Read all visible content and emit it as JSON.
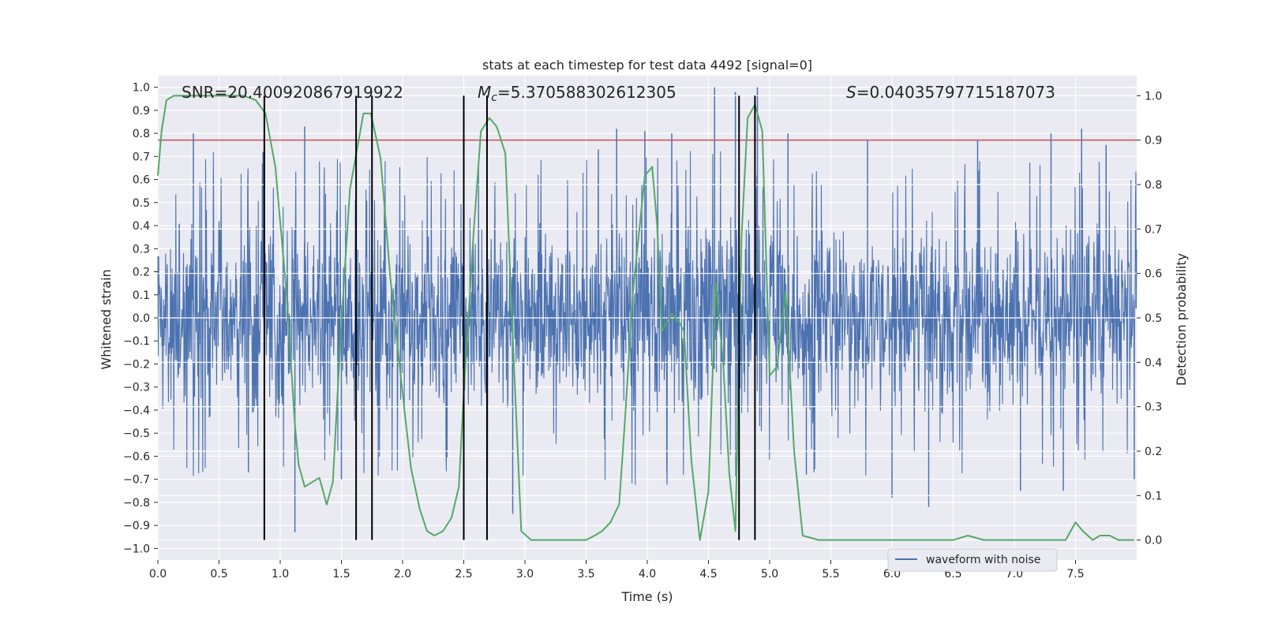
{
  "chart_data": {
    "type": "line",
    "title": "stats at each timestep for test data 4492 [signal=0]",
    "xlabel": "Time (s)",
    "ylabel_left": "Whitened strain",
    "ylabel_right": "Detection probability",
    "xlim": [
      0.0,
      8.0
    ],
    "ylim_left": [
      -1.05,
      1.05
    ],
    "ylim_right": [
      -0.045,
      1.045
    ],
    "x_ticks": [
      0.0,
      0.5,
      1.0,
      1.5,
      2.0,
      2.5,
      3.0,
      3.5,
      4.0,
      4.5,
      5.0,
      5.5,
      6.0,
      6.5,
      7.0,
      7.5
    ],
    "x_tick_labels": [
      "0.0",
      "0.5",
      "1.0",
      "1.5",
      "2.0",
      "2.5",
      "3.0",
      "3.5",
      "4.0",
      "4.5",
      "5.0",
      "5.5",
      "6.0",
      "6.5",
      "7.0",
      "7.5"
    ],
    "y_left_ticks": [
      -1.0,
      -0.9,
      -0.8,
      -0.7,
      -0.6,
      -0.5,
      -0.4,
      -0.3,
      -0.2,
      -0.1,
      0.0,
      0.1,
      0.2,
      0.3,
      0.4,
      0.5,
      0.6,
      0.7,
      0.8,
      0.9,
      1.0
    ],
    "y_left_tick_labels": [
      "−1.0",
      "−0.9",
      "−0.8",
      "−0.7",
      "−0.6",
      "−0.5",
      "−0.4",
      "−0.3",
      "−0.2",
      "−0.1",
      "0.0",
      "0.1",
      "0.2",
      "0.3",
      "0.4",
      "0.5",
      "0.6",
      "0.7",
      "0.8",
      "0.9",
      "1.0"
    ],
    "y_right_ticks": [
      0.0,
      0.1,
      0.2,
      0.3,
      0.4,
      0.5,
      0.6,
      0.7,
      0.8,
      0.9,
      1.0
    ],
    "y_right_tick_labels": [
      "0.0",
      "0.1",
      "0.2",
      "0.3",
      "0.4",
      "0.5",
      "0.6",
      "0.7",
      "0.8",
      "0.9",
      "1.0"
    ],
    "grid": true,
    "legend": {
      "placement": "lower-right",
      "entries": [
        "waveform with noise"
      ]
    },
    "annotations": {
      "snr": {
        "prefix": "SNR=",
        "value": "20.400920867919922"
      },
      "mc": {
        "prefix": "M",
        "subscript": "c",
        "equals": "=",
        "value": "5.370588302612305"
      },
      "s": {
        "prefix": "S",
        "equals": "=",
        "value": "0.04035797715187073"
      }
    },
    "threshold": {
      "axis": "right",
      "value": 0.9,
      "color": "#c44e52"
    },
    "vertical_lines_x": [
      0.87,
      1.62,
      1.75,
      2.5,
      2.69,
      4.75,
      4.88
    ],
    "vertical_lines_range_right": [
      0.0,
      1.0
    ],
    "waveform": {
      "name": "waveform with noise",
      "color": "#4c72b0",
      "envelope_points": [
        [
          0.0,
          0.55
        ],
        [
          0.5,
          0.6
        ],
        [
          1.0,
          0.6
        ],
        [
          1.5,
          0.55
        ],
        [
          2.0,
          0.55
        ],
        [
          2.5,
          0.58
        ],
        [
          3.0,
          0.55
        ],
        [
          3.5,
          0.55
        ],
        [
          4.0,
          0.6
        ],
        [
          4.5,
          0.62
        ],
        [
          5.0,
          0.55
        ],
        [
          5.5,
          0.55
        ],
        [
          6.0,
          0.55
        ],
        [
          6.5,
          0.55
        ],
        [
          7.0,
          0.55
        ],
        [
          7.5,
          0.55
        ],
        [
          8.0,
          0.55
        ]
      ],
      "peaks": [
        [
          0.29,
          0.8
        ],
        [
          0.74,
          -0.67
        ],
        [
          0.86,
          0.72
        ],
        [
          1.12,
          -0.93
        ],
        [
          1.2,
          0.83
        ],
        [
          1.5,
          -0.7
        ],
        [
          2.5,
          -0.8
        ],
        [
          2.9,
          -0.85
        ],
        [
          3.6,
          0.73
        ],
        [
          3.75,
          0.82
        ],
        [
          3.98,
          0.81
        ],
        [
          4.2,
          0.8
        ],
        [
          4.55,
          1.0
        ],
        [
          4.72,
          0.98
        ],
        [
          4.9,
          1.0
        ],
        [
          5.15,
          0.8
        ],
        [
          5.3,
          -0.68
        ],
        [
          5.8,
          0.77
        ],
        [
          6.0,
          -0.78
        ],
        [
          6.3,
          -0.82
        ],
        [
          6.7,
          0.77
        ],
        [
          7.05,
          -0.75
        ],
        [
          7.3,
          0.8
        ],
        [
          7.4,
          -0.75
        ],
        [
          7.55,
          0.82
        ],
        [
          7.75,
          0.75
        ],
        [
          7.98,
          -0.7
        ]
      ]
    },
    "detection_probability": {
      "color": "#55a868",
      "x": [
        0.0,
        0.03,
        0.07,
        0.13,
        0.3,
        0.5,
        0.7,
        0.8,
        0.88,
        0.96,
        1.05,
        1.12,
        1.15,
        1.2,
        1.26,
        1.32,
        1.38,
        1.43,
        1.5,
        1.57,
        1.68,
        1.74,
        1.82,
        1.9,
        2.02,
        2.07,
        2.14,
        2.2,
        2.26,
        2.33,
        2.4,
        2.46,
        2.5,
        2.58,
        2.64,
        2.71,
        2.77,
        2.84,
        2.9,
        2.97,
        3.05,
        3.2,
        3.4,
        3.5,
        3.57,
        3.63,
        3.7,
        3.77,
        3.82,
        3.88,
        3.98,
        4.04,
        4.08,
        4.12,
        4.2,
        4.26,
        4.3,
        4.36,
        4.43,
        4.5,
        4.56,
        4.62,
        4.67,
        4.72,
        4.77,
        4.82,
        4.88,
        4.94,
        5.0,
        5.06,
        5.13,
        5.2,
        5.27,
        5.4,
        5.7,
        5.95,
        6.2,
        6.5,
        6.62,
        6.75,
        7.0,
        7.32,
        7.42,
        7.5,
        7.56,
        7.64,
        7.7,
        7.78,
        7.85,
        7.92,
        7.98
      ],
      "y": [
        0.82,
        0.92,
        0.99,
        1.0,
        1.0,
        1.0,
        1.0,
        0.99,
        0.96,
        0.84,
        0.56,
        0.26,
        0.17,
        0.12,
        0.13,
        0.14,
        0.08,
        0.13,
        0.49,
        0.79,
        0.96,
        0.96,
        0.86,
        0.59,
        0.28,
        0.16,
        0.07,
        0.02,
        0.01,
        0.02,
        0.05,
        0.12,
        0.33,
        0.69,
        0.92,
        0.95,
        0.93,
        0.87,
        0.46,
        0.02,
        0.0,
        0.0,
        0.0,
        0.0,
        0.01,
        0.02,
        0.04,
        0.08,
        0.28,
        0.55,
        0.82,
        0.84,
        0.71,
        0.47,
        0.51,
        0.49,
        0.47,
        0.18,
        0.0,
        0.11,
        0.58,
        0.4,
        0.15,
        0.02,
        0.68,
        0.95,
        0.98,
        0.92,
        0.37,
        0.39,
        0.56,
        0.2,
        0.01,
        0.0,
        0.0,
        0.0,
        0.0,
        0.0,
        0.01,
        0.0,
        0.0,
        0.0,
        0.0,
        0.04,
        0.02,
        0.0,
        0.01,
        0.01,
        0.0,
        0.0,
        0.0
      ]
    }
  }
}
